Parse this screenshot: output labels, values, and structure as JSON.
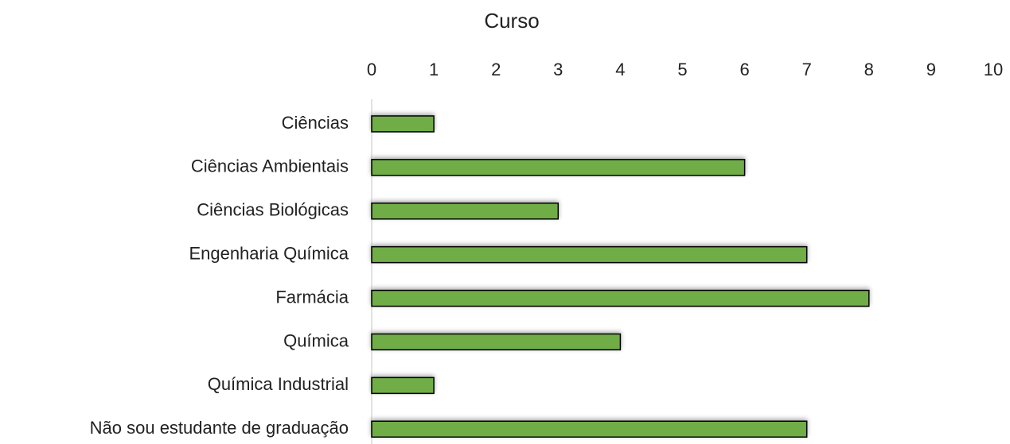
{
  "chart_data": {
    "type": "bar",
    "orientation": "horizontal",
    "title": "Curso",
    "categories": [
      "Ciências",
      "Ciências Ambientais",
      "Ciências Biológicas",
      "Engenharia Química",
      "Farmácia",
      "Química",
      "Química Industrial",
      "Não sou estudante de graduação"
    ],
    "values": [
      1,
      6,
      3,
      7,
      8,
      4,
      1,
      7
    ],
    "color": "#70ad47",
    "xlim": [
      0,
      10
    ],
    "xticks": [
      0,
      1,
      2,
      3,
      4,
      5,
      6,
      7,
      8,
      9,
      10
    ],
    "grid": false
  }
}
